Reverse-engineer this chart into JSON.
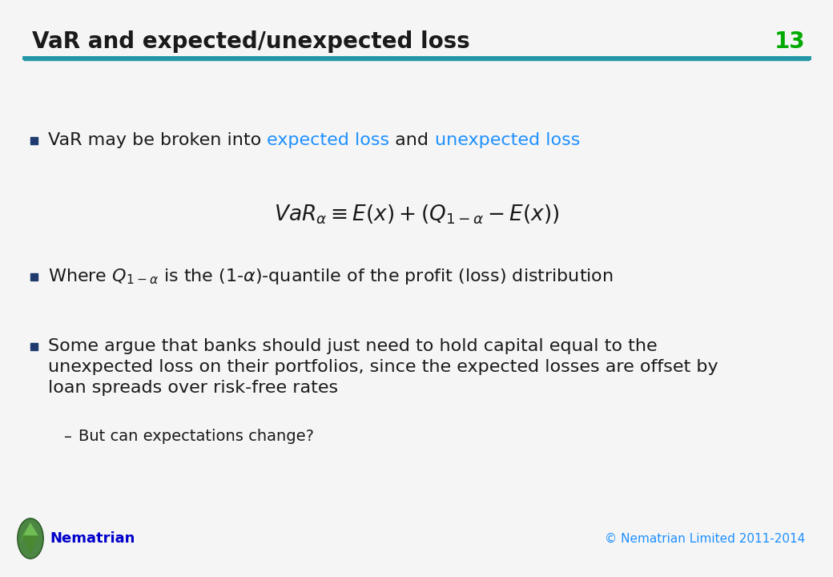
{
  "title": "VaR and expected/unexpected loss",
  "slide_number": "13",
  "title_color": "#1a1a1a",
  "title_fontsize": 20,
  "slide_number_color": "#00aa00",
  "header_line_color": "#2196a6",
  "background_color": "#f5f5f5",
  "bullet_color": "#1a1a1a",
  "bullet_square_color": "#1e3a6e",
  "highlight_color": "#1e90ff",
  "body_fontsize": 16,
  "sub_fontsize": 14,
  "formula_fontsize": 19,
  "footer_brand": "Nematrian",
  "footer_brand_color": "#0000cc",
  "footer_copy": "© Nematrian Limited 2011-2014",
  "footer_copy_color": "#1e90ff",
  "bullet1_plain": "VaR may be broken into ",
  "bullet1_colored1": "expected loss",
  "bullet1_mid": " and ",
  "bullet1_colored2": "unexpected loss",
  "formula": "$VaR_{\\alpha} \\equiv E\\left(x\\right)+\\left(Q_{1-\\alpha} - E\\left(x\\right)\\right)$",
  "bullet2_text": "Where $Q_{1-\\alpha}$ is the $(1$-$\\alpha)$-quantile of the profit (loss) distribution",
  "bullet3_line1": "Some argue that banks should just need to hold capital equal to the",
  "bullet3_line2": "unexpected loss on their portfolios, since the expected losses are offset by",
  "bullet3_line3": "loan spreads over risk-free rates",
  "sub_bullet_text": "But can expectations change?"
}
